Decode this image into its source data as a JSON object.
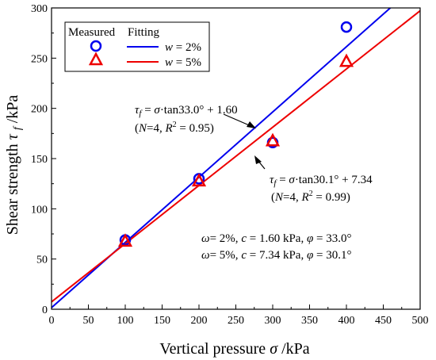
{
  "chart_data": {
    "type": "scatter",
    "xlabel": "Vertical pressure σ /kPa",
    "ylabel": "Shear strength τ_f /kPa",
    "xlim": [
      0,
      500
    ],
    "ylim": [
      0,
      300
    ],
    "xticks": [
      0,
      50,
      100,
      150,
      200,
      250,
      300,
      350,
      400,
      450,
      500
    ],
    "yticks": [
      0,
      50,
      100,
      150,
      200,
      250,
      300
    ],
    "grid": false,
    "legend": {
      "placement": "top-left",
      "header_measured": "Measured",
      "header_fitting": "Fitting",
      "entries": [
        {
          "var": "w",
          "text": " = 2%",
          "marker": "circle",
          "color": "#0000ee"
        },
        {
          "var": "w",
          "text": " = 5%",
          "marker": "triangle",
          "color": "#ee0000"
        }
      ]
    },
    "series": [
      {
        "name": "w = 2%",
        "color": "#0000ee",
        "marker": "circle",
        "points": [
          [
            100,
            69
          ],
          [
            200,
            130
          ],
          [
            300,
            166
          ],
          [
            400,
            281
          ]
        ],
        "fit": {
          "slope": 0.6494,
          "intercept": 1.6
        }
      },
      {
        "name": "w = 5%",
        "color": "#ee0000",
        "marker": "triangle",
        "points": [
          [
            100,
            68
          ],
          [
            200,
            128
          ],
          [
            300,
            168
          ],
          [
            400,
            247
          ]
        ],
        "fit": {
          "slope": 0.5797,
          "intercept": 7.34
        }
      }
    ],
    "annotations": [
      {
        "eq": {
          "lhs": "τ",
          "sub": "f",
          "rhs_a": " = ",
          "sigma": "σ",
          "rhs_b": "·tan33.0° + 1.60"
        },
        "stats": {
          "N": "N",
          "n_val": "=4, ",
          "R": "R",
          "sup": "2",
          "r_val": " = 0.95)"
        }
      },
      {
        "eq": {
          "lhs": "τ",
          "sub": "f",
          "rhs_a": " = ",
          "sigma": "σ",
          "rhs_b": "·tan30.1° + 7.34"
        },
        "stats": {
          "N": "N",
          "n_val": "=4, ",
          "R": "R",
          "sup": "2",
          "r_val": " = 0.99)"
        }
      }
    ],
    "params": [
      {
        "w": "ω",
        "w_val": "= 2%, ",
        "c": "c",
        "c_val": " = 1.60 kPa, ",
        "phi": "φ",
        "phi_val": " = 33.0°"
      },
      {
        "w": "ω",
        "w_val": "= 5%, ",
        "c": "c",
        "c_val": " = 7.34 kPa, ",
        "phi": "φ",
        "phi_val": " = 30.1°"
      }
    ],
    "axis_text": {
      "x": {
        "word": "Vertical pressure ",
        "sym": "σ",
        "unit": " /kPa"
      },
      "y": {
        "word": "Shear strength ",
        "sym": "τ",
        "sub": "f",
        "unit": " /kPa"
      }
    }
  }
}
